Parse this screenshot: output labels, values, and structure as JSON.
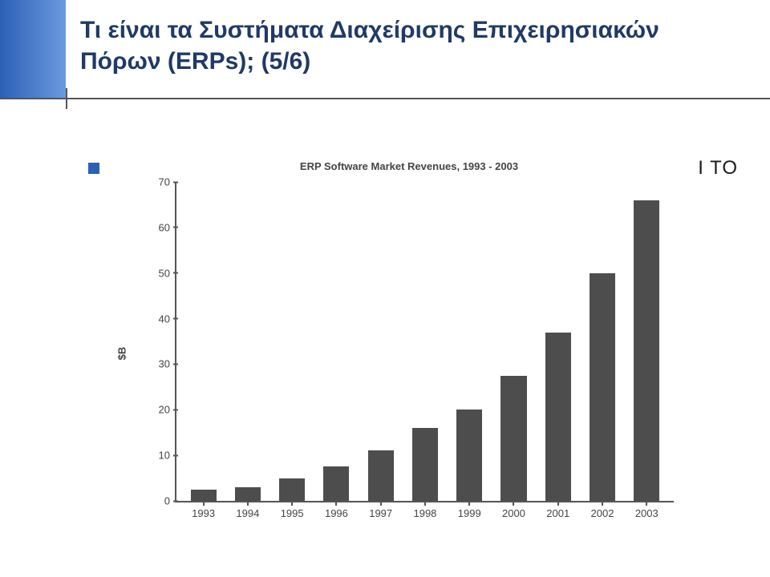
{
  "slide": {
    "title": "Τι είναι τα Συστήματα Διαχείρισης Επιχειρησιακών Πόρων (ERPs); (5/6)",
    "bullet_tail_text": "I TO",
    "accent_color": "#2b60b5",
    "title_color": "#1f3a66",
    "divider_color": "#555555"
  },
  "chart": {
    "type": "bar",
    "title": "ERP Software Market Revenues, 1993 - 2003",
    "title_fontsize": 13,
    "ylabel": "$B",
    "label_fontsize": 13,
    "ylim": [
      0,
      70
    ],
    "ytick_step": 10,
    "yticks": [
      0,
      10,
      20,
      30,
      40,
      50,
      60,
      70
    ],
    "categories": [
      "1993",
      "1994",
      "1995",
      "1996",
      "1997",
      "1998",
      "1999",
      "2000",
      "2001",
      "2002",
      "2003"
    ],
    "values": [
      2.5,
      3,
      5,
      7.5,
      11,
      16,
      20,
      27.5,
      37,
      50,
      66
    ],
    "bar_color": "#4d4d4d",
    "axis_color": "#555555",
    "background_color": "#ffffff",
    "text_color": "#444444",
    "bar_width": 0.58,
    "grid": false
  }
}
